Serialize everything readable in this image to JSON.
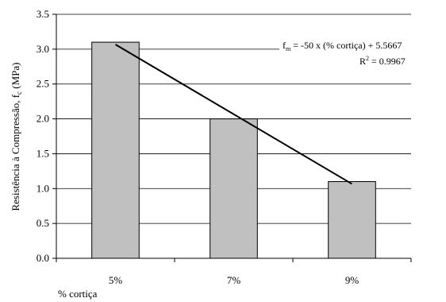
{
  "chart_data": {
    "type": "bar",
    "categories": [
      "5%",
      "7%",
      "9%"
    ],
    "series": [
      {
        "values": [
          3.1,
          2.0,
          1.1
        ]
      }
    ],
    "trendline": {
      "type": "linear",
      "x": [
        0.05,
        0.09
      ],
      "y": [
        3.0667,
        1.0667
      ],
      "equation_lhs": "f",
      "equation_lhs_sub": "m",
      "equation_rhs": " = -50 x (% cortiça) + 5.5667",
      "r2_base": "R",
      "r2_sup": "2",
      "r2_rest": " = 0.9967"
    },
    "title": "",
    "xlabel": "% cortiça",
    "ylabel_prefix": "Resistência à Compressão, f",
    "ylabel_sub": "c",
    "ylabel_suffix": " (MPa)",
    "ylim": [
      0,
      3.5
    ],
    "yticks": [
      "0.0",
      "0.5",
      "1.0",
      "1.5",
      "2.0",
      "2.5",
      "3.0",
      "3.5"
    ],
    "grid": "horizontal",
    "bar_color": "#c0c0c0",
    "line_color": "#000000"
  }
}
